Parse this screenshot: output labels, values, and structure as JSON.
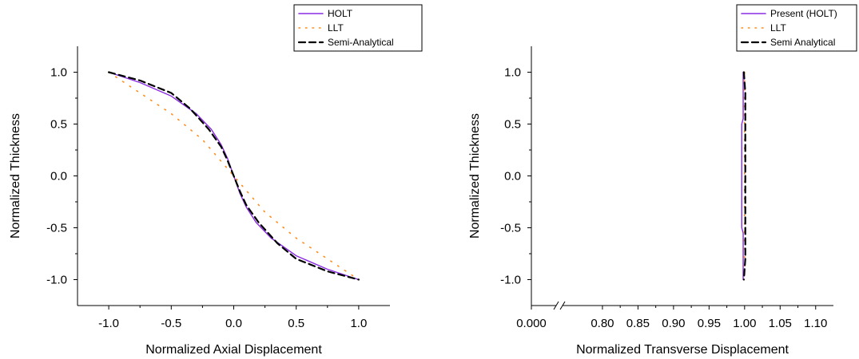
{
  "chart_data": [
    {
      "type": "line",
      "xlabel": "Normalized Axial Displacement",
      "ylabel": "Normalized Thickness",
      "xlim": [
        -1.25,
        1.25
      ],
      "ylim": [
        -1.25,
        1.25
      ],
      "xticks": [
        "-1.0",
        "-0.5",
        "0.0",
        "0.5",
        "1.0"
      ],
      "yticks": [
        "1.0",
        "0.5",
        "0.0",
        "-0.5",
        "-1.0"
      ],
      "legend_position": "top-right",
      "series": [
        {
          "name": "HOLT",
          "color": "#8a2be2",
          "style": "solid",
          "x": [
            -1.0,
            -0.75,
            -0.5,
            -0.3,
            -0.18,
            -0.1,
            -0.05,
            0.0,
            0.05,
            0.1,
            0.18,
            0.3,
            0.5,
            0.75,
            1.0
          ],
          "y": [
            1.0,
            0.9,
            0.77,
            0.6,
            0.45,
            0.3,
            0.17,
            0.0,
            -0.17,
            -0.3,
            -0.45,
            -0.6,
            -0.77,
            -0.9,
            -1.0
          ]
        },
        {
          "name": "LLT",
          "color": "#ff8c1a",
          "style": "dotted",
          "x": [
            -1.0,
            -0.75,
            -0.5,
            -0.25,
            0.0,
            0.25,
            0.5,
            0.75,
            1.0
          ],
          "y": [
            1.0,
            0.8,
            0.6,
            0.35,
            0.0,
            -0.35,
            -0.6,
            -0.8,
            -1.0
          ]
        },
        {
          "name": "Semi-Analytical",
          "color": "#000000",
          "style": "dashed",
          "x": [
            -1.0,
            -0.75,
            -0.5,
            -0.35,
            -0.2,
            -0.1,
            -0.05,
            0.0,
            0.05,
            0.1,
            0.2,
            0.35,
            0.5,
            0.75,
            1.0
          ],
          "y": [
            1.0,
            0.92,
            0.8,
            0.65,
            0.45,
            0.28,
            0.15,
            0.0,
            -0.15,
            -0.28,
            -0.45,
            -0.65,
            -0.8,
            -0.92,
            -1.0
          ]
        }
      ]
    },
    {
      "type": "line",
      "xlabel": "Normalized Transverse Displacement",
      "ylabel": "Normalized Thickness",
      "xlim": [
        0.7,
        1.125
      ],
      "ylim": [
        -1.25,
        1.25
      ],
      "xticks": [
        "0.000",
        "0.80",
        "0.85",
        "0.90",
        "0.95",
        "1.00",
        "1.05",
        "1.10"
      ],
      "yticks": [
        "1.0",
        "0.5",
        "0.0",
        "-0.5",
        "-1.0"
      ],
      "axis_break": [
        0.0,
        0.8
      ],
      "legend_position": "top-right",
      "series": [
        {
          "name": "Present (HOLT)",
          "color": "#8a2be2",
          "style": "solid",
          "x": [
            0.998,
            0.998,
            0.996,
            0.996,
            0.996,
            0.998,
            0.998
          ],
          "y": [
            1.0,
            0.55,
            0.5,
            0.0,
            -0.5,
            -0.55,
            -1.0
          ]
        },
        {
          "name": "LLT",
          "color": "#ff8c1a",
          "style": "dotted",
          "x": [
            1.0,
            1.0
          ],
          "y": [
            1.0,
            -1.0
          ]
        },
        {
          "name": "Semi Analytical",
          "color": "#000000",
          "style": "dashed",
          "x": [
            0.999,
            1.001,
            1.001,
            1.001,
            0.999
          ],
          "y": [
            1.0,
            0.8,
            0.0,
            -0.8,
            -1.0
          ]
        }
      ]
    }
  ]
}
